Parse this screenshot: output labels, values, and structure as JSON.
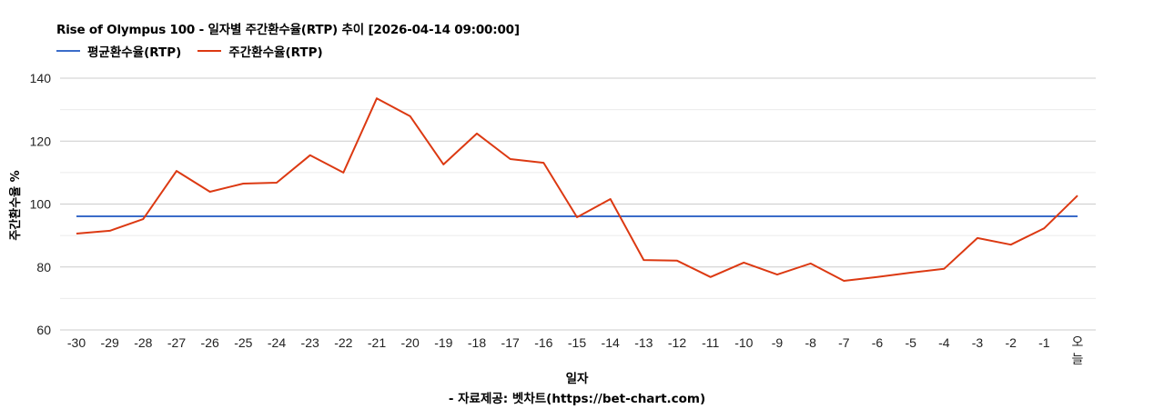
{
  "header": {
    "title": "Rise of Olympus 100 - 일자별 주간환수율(RTP) 추이 [2026-04-14 09:00:00]"
  },
  "legend": {
    "items": [
      {
        "label": "평균환수율(RTP)",
        "color": "#3b6cc9"
      },
      {
        "label": "주간환수율(RTP)",
        "color": "#dc3912"
      }
    ]
  },
  "axes": {
    "ylabel": "주간환수율 %",
    "xlabel": "일자",
    "source": "- 자료제공: 벳차트(https://bet-chart.com)"
  },
  "chart_data": {
    "type": "line",
    "title": "Rise of Olympus 100 - 일자별 주간환수율(RTP) 추이 [2026-04-14 09:00:00]",
    "xlabel": "일자",
    "ylabel": "주간환수율 %",
    "ylim": [
      60,
      140
    ],
    "yticks": [
      60,
      80,
      100,
      120,
      140
    ],
    "minor_gridlines": [
      70,
      90,
      110,
      130
    ],
    "grid": true,
    "legend_position": "top",
    "categories": [
      "-30",
      "-29",
      "-28",
      "-27",
      "-26",
      "-25",
      "-24",
      "-23",
      "-22",
      "-21",
      "-20",
      "-19",
      "-18",
      "-17",
      "-16",
      "-15",
      "-14",
      "-13",
      "-12",
      "-11",
      "-10",
      "-9",
      "-8",
      "-7",
      "-6",
      "-5",
      "-4",
      "-3",
      "-2",
      "-1",
      "오늘"
    ],
    "series": [
      {
        "name": "평균환수율(RTP)",
        "color": "#3b6cc9",
        "values": [
          96.1,
          96.1,
          96.1,
          96.1,
          96.1,
          96.1,
          96.1,
          96.1,
          96.1,
          96.1,
          96.1,
          96.1,
          96.1,
          96.1,
          96.1,
          96.1,
          96.1,
          96.1,
          96.1,
          96.1,
          96.1,
          96.1,
          96.1,
          96.1,
          96.1,
          96.1,
          96.1,
          96.1,
          96.1,
          96.1,
          96.1
        ]
      },
      {
        "name": "주간환수율(RTP)",
        "color": "#dc3912",
        "values": [
          90.6,
          91.5,
          95.2,
          110.5,
          103.9,
          106.5,
          106.8,
          115.5,
          110.0,
          133.6,
          127.9,
          112.6,
          122.4,
          114.3,
          113.1,
          95.8,
          101.6,
          82.2,
          82.0,
          76.8,
          81.4,
          77.6,
          81.1,
          75.6,
          76.8,
          78.2,
          79.4,
          89.2,
          87.1,
          92.3,
          102.7
        ]
      }
    ]
  }
}
